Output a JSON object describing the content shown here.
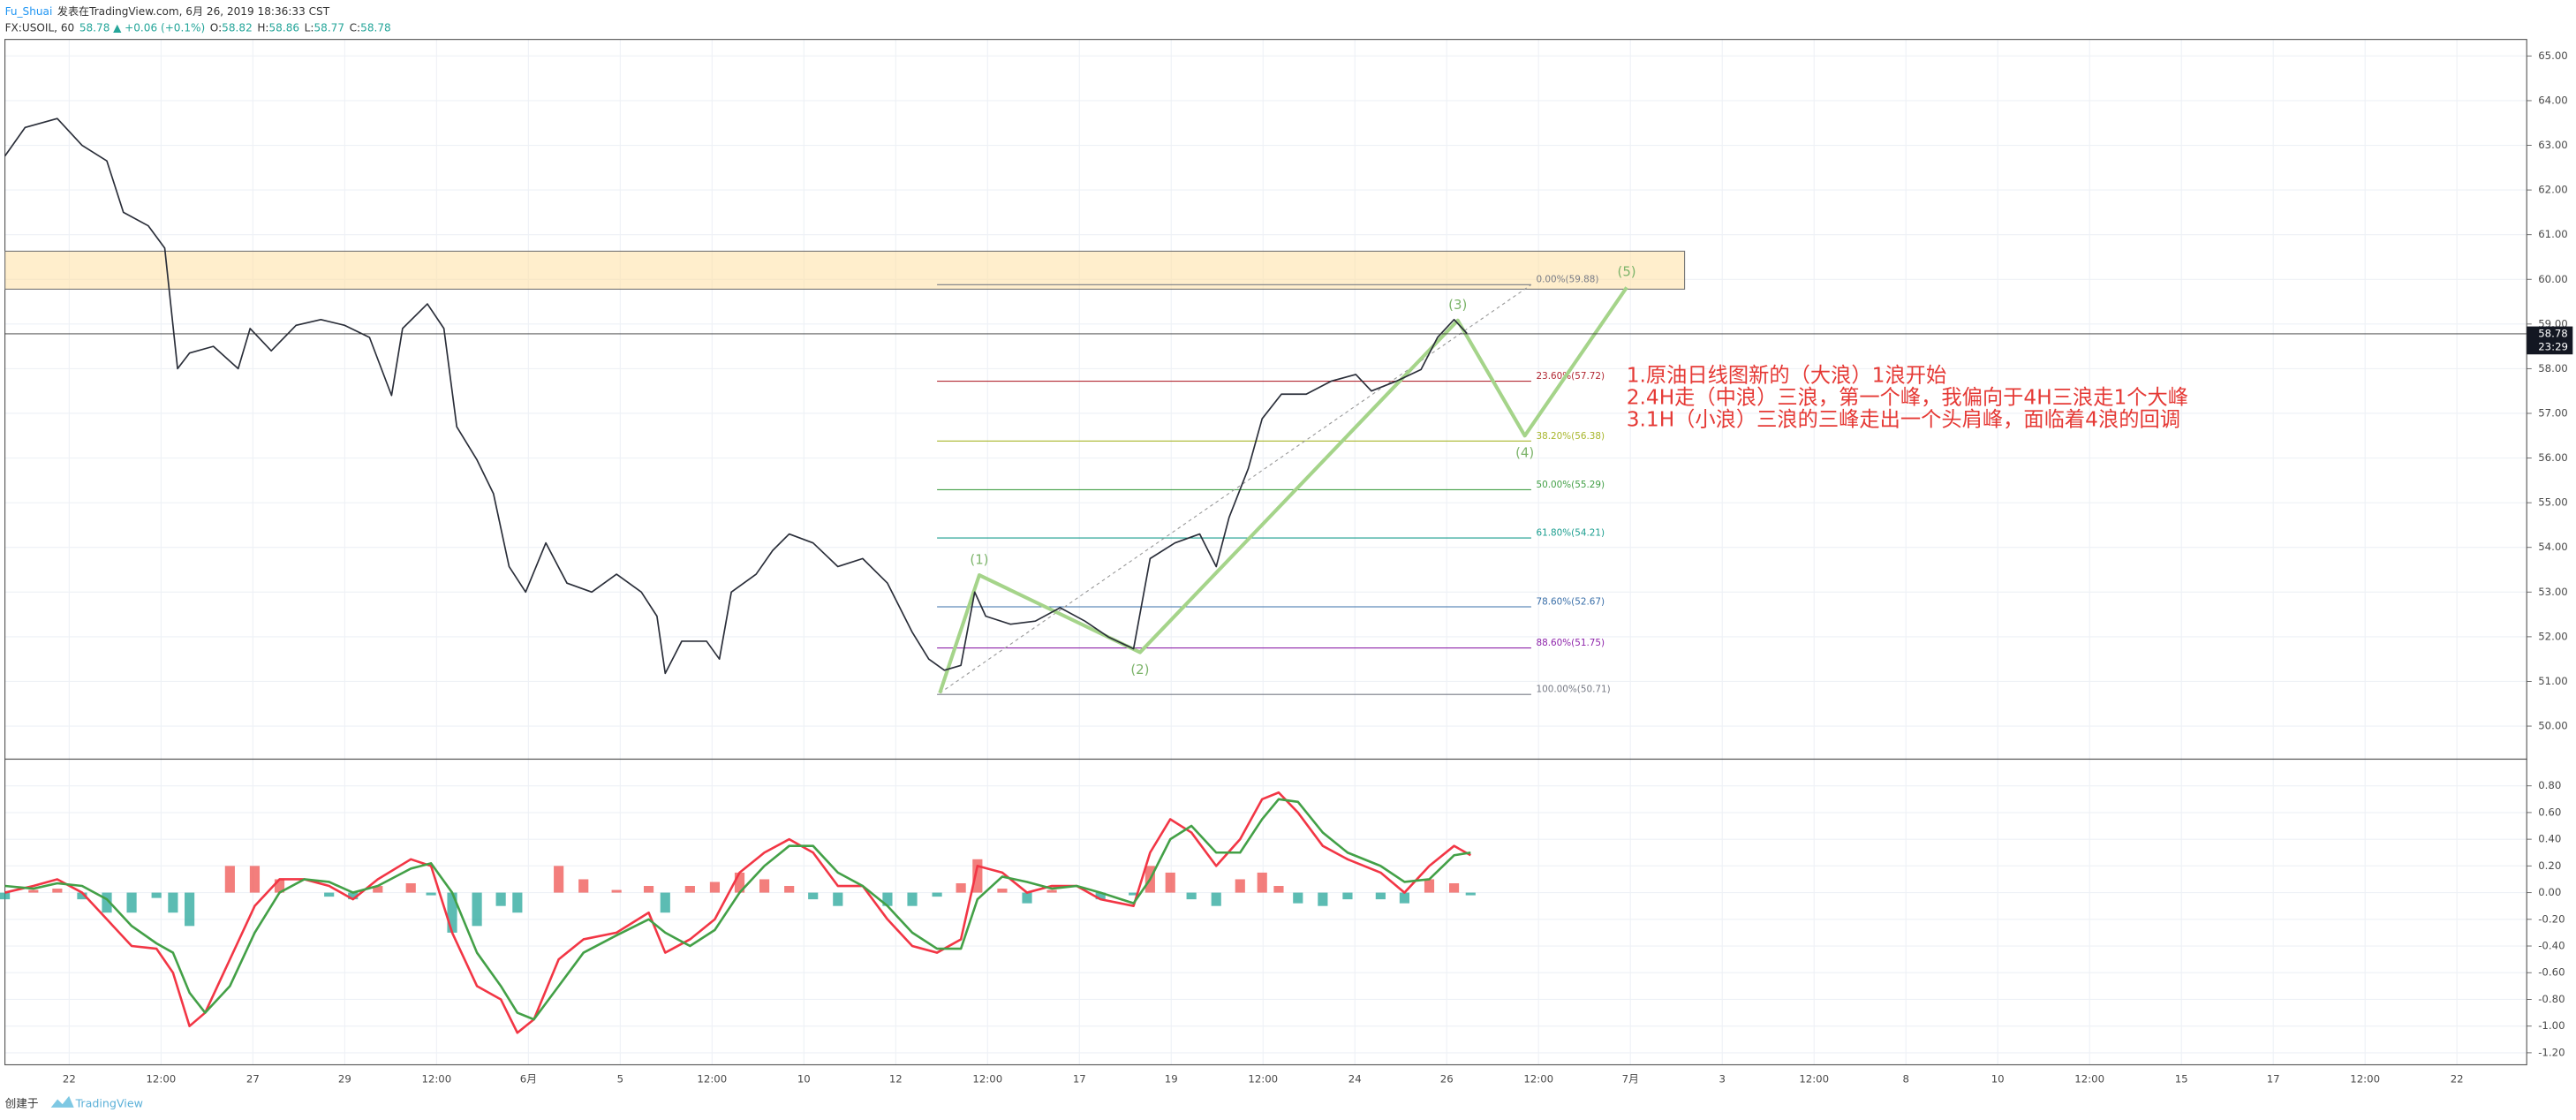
{
  "header": {
    "author": "Fu_Shuai",
    "published": "发表在TradingView.com, 6月 26, 2019 18:36:33 CST",
    "symbol": "FX:USOIL, 60",
    "price": "58.78",
    "arrow": "▲",
    "change": "+0.06 (+0.1%)",
    "ohlc": [
      {
        "k": "O:",
        "v": "58.82"
      },
      {
        "k": "H:",
        "v": "58.86"
      },
      {
        "k": "L:",
        "v": "58.77"
      },
      {
        "k": "C:",
        "v": "58.78"
      }
    ]
  },
  "footer": {
    "created": "创建于",
    "brand": "TradingView"
  },
  "chart_data": [
    {
      "type": "line",
      "color": "#2a2e39",
      "x": [
        -0.7,
        -0.48,
        -0.13,
        0.14,
        0.41,
        0.59,
        0.86,
        1.04,
        1.18,
        1.31,
        1.57,
        1.84,
        1.97,
        2.2,
        2.47,
        2.74,
        3.0,
        3.27,
        3.51,
        3.63,
        3.9,
        4.08,
        4.22,
        4.44,
        4.62,
        4.79,
        4.97,
        5.19,
        5.42,
        5.69,
        5.96,
        6.23,
        6.4,
        6.49,
        6.67,
        6.94,
        7.08,
        7.21,
        7.48,
        7.66,
        7.84,
        8.1,
        8.37,
        8.64,
        8.91,
        9.18,
        9.36,
        9.53,
        9.71,
        9.86,
        9.98,
        10.25,
        10.52,
        10.79,
        11.06,
        11.32,
        11.59,
        11.77,
        12.04,
        12.31,
        12.49,
        12.63,
        12.84,
        12.99,
        13.2,
        13.47,
        13.74,
        14.01,
        14.18,
        14.45,
        14.72,
        14.9,
        15.08,
        15.22
      ],
      "values": [
        62.76,
        63.4,
        63.6,
        63.0,
        62.65,
        61.5,
        61.2,
        60.7,
        58.0,
        58.35,
        58.5,
        58.0,
        58.9,
        58.4,
        58.97,
        59.1,
        58.97,
        58.7,
        57.4,
        58.9,
        59.45,
        58.9,
        56.7,
        55.96,
        55.2,
        53.57,
        53.0,
        54.1,
        53.2,
        53.0,
        53.4,
        53.0,
        52.46,
        51.18,
        51.9,
        51.9,
        51.5,
        53.0,
        53.4,
        53.93,
        54.3,
        54.1,
        53.57,
        53.75,
        53.2,
        52.1,
        51.5,
        51.25,
        51.36,
        53.0,
        52.46,
        52.28,
        52.35,
        52.65,
        52.35,
        51.99,
        51.73,
        53.75,
        54.1,
        54.3,
        53.57,
        54.67,
        55.77,
        56.88,
        57.43,
        57.43,
        57.72,
        57.87,
        57.5,
        57.72,
        57.98,
        58.7,
        59.1,
        58.79
      ],
      "xlim": [
        -0.7,
        26.76
      ],
      "ylim": [
        49.26,
        65.37
      ],
      "xticks": [
        {
          "value": 0,
          "label": "22"
        },
        {
          "value": 1,
          "label": "12:00"
        },
        {
          "value": 2,
          "label": "27"
        },
        {
          "value": 3,
          "label": "29"
        },
        {
          "value": 4,
          "label": "12:00"
        },
        {
          "value": 5,
          "label": "6月"
        },
        {
          "value": 6,
          "label": "5"
        },
        {
          "value": 7,
          "label": "12:00"
        },
        {
          "value": 8,
          "label": "10"
        },
        {
          "value": 9,
          "label": "12"
        },
        {
          "value": 10,
          "label": "12:00"
        },
        {
          "value": 11,
          "label": "17"
        },
        {
          "value": 12,
          "label": "19"
        },
        {
          "value": 13,
          "label": "12:00"
        },
        {
          "value": 14,
          "label": "24"
        },
        {
          "value": 15,
          "label": "26"
        },
        {
          "value": 16,
          "label": "12:00"
        },
        {
          "value": 17,
          "label": "7月"
        },
        {
          "value": 18,
          "label": "3"
        },
        {
          "value": 19,
          "label": "12:00"
        },
        {
          "value": 20,
          "label": "8"
        },
        {
          "value": 21,
          "label": "10"
        },
        {
          "value": 22,
          "label": "12:00"
        },
        {
          "value": 23,
          "label": "15"
        },
        {
          "value": 24,
          "label": "17"
        },
        {
          "value": 25,
          "label": "12:00"
        },
        {
          "value": 26,
          "label": "22"
        }
      ],
      "yticks": [
        {
          "value": 50,
          "label": "50.00"
        },
        {
          "value": 51,
          "label": "51.00"
        },
        {
          "value": 52,
          "label": "52.00"
        },
        {
          "value": 53,
          "label": "53.00"
        },
        {
          "value": 54,
          "label": "54.00"
        },
        {
          "value": 55,
          "label": "55.00"
        },
        {
          "value": 56,
          "label": "56.00"
        },
        {
          "value": 57,
          "label": "57.00"
        },
        {
          "value": 58,
          "label": "58.00"
        },
        {
          "value": 59,
          "label": "59.00"
        },
        {
          "value": 60,
          "label": "60.00"
        },
        {
          "value": 61,
          "label": "61.00"
        },
        {
          "value": 62,
          "label": "62.00"
        },
        {
          "value": 63,
          "label": "63.00"
        },
        {
          "value": 64,
          "label": "64.00"
        },
        {
          "value": 65,
          "label": "65.00"
        }
      ],
      "grid": true,
      "zone": {
        "x": [
          -0.7,
          17.59
        ],
        "y": [
          59.78,
          60.63
        ],
        "color": "#ffe0a3"
      },
      "fib": {
        "x": [
          9.45,
          15.92
        ],
        "levels": [
          {
            "value": 59.88,
            "label": "0.00%(59.88)",
            "color": "#787b86"
          },
          {
            "value": 57.72,
            "label": "23.60%(57.72)",
            "color": "#b22833"
          },
          {
            "value": 56.38,
            "label": "38.20%(56.38)",
            "color": "#a8b62c"
          },
          {
            "value": 55.29,
            "label": "50.00%(55.29)",
            "color": "#43a047"
          },
          {
            "value": 54.21,
            "label": "61.80%(54.21)",
            "color": "#1b9e8f"
          },
          {
            "value": 52.67,
            "label": "78.60%(52.67)",
            "color": "#3a6fa8"
          },
          {
            "value": 51.75,
            "label": "88.60%(51.75)",
            "color": "#8e24aa"
          },
          {
            "value": 50.71,
            "label": "100.00%(50.71)",
            "color": "#787b86"
          }
        ]
      },
      "wave": {
        "x": [
          9.48,
          9.91,
          11.66,
          15.12,
          15.85,
          16.96
        ],
        "y": [
          50.74,
          53.38,
          51.65,
          59.08,
          56.5,
          59.82
        ],
        "labels": [
          null,
          "(1)",
          "(2)",
          "(3)",
          "(4)",
          "(5)"
        ],
        "color": "#a5d48a"
      },
      "trend": {
        "x": [
          9.48,
          15.92
        ],
        "y": [
          50.74,
          59.88
        ]
      },
      "last": {
        "value": 58.78,
        "countdown": "23:29"
      },
      "annotations": [
        "1.原油日线图新的（大浪）1浪开始",
        "2.4H走（中浪）三浪，第一个峰，我偏向于4H三浪走1个大峰",
        "3.1H（小浪）三浪的三峰走出一个头肩峰，面临着4浪的回调"
      ],
      "annotation_color": "#e53935"
    },
    {
      "type": "macd",
      "x": [
        -0.7,
        -0.39,
        -0.13,
        0.14,
        0.41,
        0.68,
        0.95,
        1.13,
        1.31,
        1.48,
        1.75,
        2.02,
        2.29,
        2.56,
        2.83,
        3.09,
        3.36,
        3.72,
        3.94,
        4.17,
        4.44,
        4.7,
        4.88,
        5.06,
        5.33,
        5.6,
        5.96,
        6.31,
        6.49,
        6.76,
        7.03,
        7.3,
        7.57,
        7.84,
        8.1,
        8.37,
        8.64,
        8.91,
        9.18,
        9.45,
        9.71,
        9.89,
        10.16,
        10.43,
        10.7,
        10.97,
        11.23,
        11.59,
        11.77,
        11.99,
        12.22,
        12.49,
        12.75,
        12.99,
        13.17,
        13.38,
        13.65,
        13.92,
        14.28,
        14.54,
        14.81,
        15.08,
        15.26
      ],
      "series": [
        {
          "color": "#f23645",
          "values": [
            0.0,
            0.05,
            0.1,
            0.0,
            -0.2,
            -0.4,
            -0.42,
            -0.6,
            -1.0,
            -0.9,
            -0.5,
            -0.1,
            0.1,
            0.1,
            0.05,
            -0.05,
            0.1,
            0.25,
            0.2,
            -0.3,
            -0.7,
            -0.8,
            -1.05,
            -0.95,
            -0.5,
            -0.35,
            -0.3,
            -0.15,
            -0.45,
            -0.35,
            -0.2,
            0.15,
            0.3,
            0.4,
            0.3,
            0.05,
            0.05,
            -0.2,
            -0.4,
            -0.45,
            -0.35,
            0.2,
            0.15,
            0.0,
            0.05,
            0.05,
            -0.05,
            -0.1,
            0.3,
            0.55,
            0.45,
            0.2,
            0.4,
            0.7,
            0.75,
            0.6,
            0.35,
            0.25,
            0.15,
            0.0,
            0.2,
            0.35,
            0.28
          ]
        },
        {
          "color": "#43a047",
          "values": [
            0.05,
            0.03,
            0.07,
            0.05,
            -0.05,
            -0.25,
            -0.38,
            -0.45,
            -0.75,
            -0.9,
            -0.7,
            -0.3,
            0.0,
            0.1,
            0.08,
            0.0,
            0.05,
            0.18,
            0.22,
            0.0,
            -0.45,
            -0.7,
            -0.9,
            -0.95,
            -0.7,
            -0.45,
            -0.32,
            -0.2,
            -0.3,
            -0.4,
            -0.28,
            0.0,
            0.2,
            0.35,
            0.35,
            0.15,
            0.05,
            -0.1,
            -0.3,
            -0.42,
            -0.42,
            -0.05,
            0.12,
            0.08,
            0.03,
            0.05,
            0.0,
            -0.08,
            0.1,
            0.4,
            0.5,
            0.3,
            0.3,
            0.55,
            0.7,
            0.68,
            0.45,
            0.3,
            0.2,
            0.08,
            0.1,
            0.28,
            0.3
          ]
        }
      ],
      "histogram": {
        "up": "#ef5350",
        "down": "#26a69a",
        "values": [
          -0.05,
          0.02,
          0.03,
          -0.05,
          -0.15,
          -0.15,
          -0.04,
          -0.15,
          -0.25,
          0,
          0.2,
          0.2,
          0.1,
          0,
          -0.03,
          -0.05,
          0.05,
          0.07,
          -0.02,
          -0.3,
          -0.25,
          -0.1,
          -0.15,
          0,
          0.2,
          0.1,
          0.02,
          0.05,
          -0.15,
          0.05,
          0.08,
          0.15,
          0.1,
          0.05,
          -0.05,
          -0.1,
          0,
          -0.1,
          -0.1,
          -0.03,
          0.07,
          0.25,
          0.03,
          -0.08,
          0.02,
          0,
          -0.05,
          -0.02,
          0.2,
          0.15,
          -0.05,
          -0.1,
          0.1,
          0.15,
          0.05,
          -0.08,
          -0.1,
          -0.05,
          -0.05,
          -0.08,
          0.1,
          0.07,
          -0.02
        ]
      },
      "ylim": [
        -1.29,
        1.0
      ],
      "yticks": [
        {
          "value": 0.8,
          "label": "0.80"
        },
        {
          "value": 0.6,
          "label": "0.60"
        },
        {
          "value": 0.4,
          "label": "0.40"
        },
        {
          "value": 0.2,
          "label": "0.20"
        },
        {
          "value": 0,
          "label": "0.00"
        },
        {
          "value": -0.2,
          "label": "-0.20"
        },
        {
          "value": -0.4,
          "label": "-0.40"
        },
        {
          "value": -0.6,
          "label": "-0.60"
        },
        {
          "value": -0.8,
          "label": "-0.80"
        },
        {
          "value": -1.0,
          "label": "-1.00"
        },
        {
          "value": -1.2,
          "label": "-1.20"
        }
      ],
      "grid": true
    }
  ]
}
